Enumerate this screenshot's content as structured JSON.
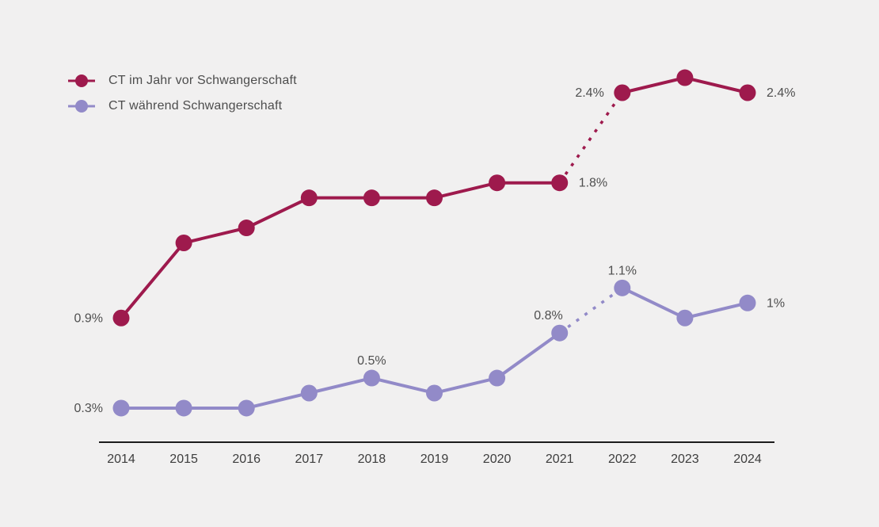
{
  "background": "#f1f0f0",
  "axis": {
    "color": "#1c1c1c"
  },
  "label_color": "#4f4f4f",
  "legend": {
    "position": "top-left",
    "items": [
      {
        "label": "CT im Jahr vor Schwangerschaft",
        "color": "#9e1a4d"
      },
      {
        "label": "CT während Schwangerschaft",
        "color": "#928ac8"
      }
    ]
  },
  "chart_data": {
    "type": "line",
    "x": [
      "2014",
      "2015",
      "2016",
      "2017",
      "2018",
      "2019",
      "2020",
      "2021",
      "2022",
      "2023",
      "2024"
    ],
    "ylim": [
      0,
      2.8
    ],
    "grid": false,
    "legend_position": "top-left",
    "dashed_segment_between": [
      "2021",
      "2022"
    ],
    "series": [
      {
        "name": "CT im Jahr vor Schwangerschaft",
        "color": "#9e1a4d",
        "values": [
          0.9,
          1.4,
          1.5,
          1.7,
          1.7,
          1.7,
          1.8,
          1.8,
          2.4,
          2.5,
          2.4
        ],
        "labels": [
          {
            "x": "2014",
            "text": "0.9%",
            "placement": "left"
          },
          {
            "x": "2021",
            "text": "1.8%",
            "placement": "right"
          },
          {
            "x": "2022",
            "text": "2.4%",
            "placement": "left"
          },
          {
            "x": "2024",
            "text": "2.4%",
            "placement": "right"
          }
        ]
      },
      {
        "name": "CT während Schwangerschaft",
        "color": "#928ac8",
        "values": [
          0.3,
          0.3,
          0.3,
          0.4,
          0.5,
          0.4,
          0.5,
          0.8,
          1.1,
          0.9,
          1.0
        ],
        "labels": [
          {
            "x": "2014",
            "text": "0.3%",
            "placement": "left"
          },
          {
            "x": "2018",
            "text": "0.5%",
            "placement": "above"
          },
          {
            "x": "2021",
            "text": "0.8%",
            "placement": "above-left"
          },
          {
            "x": "2022",
            "text": "1.1%",
            "placement": "above"
          },
          {
            "x": "2024",
            "text": "1%",
            "placement": "right"
          }
        ]
      }
    ]
  }
}
